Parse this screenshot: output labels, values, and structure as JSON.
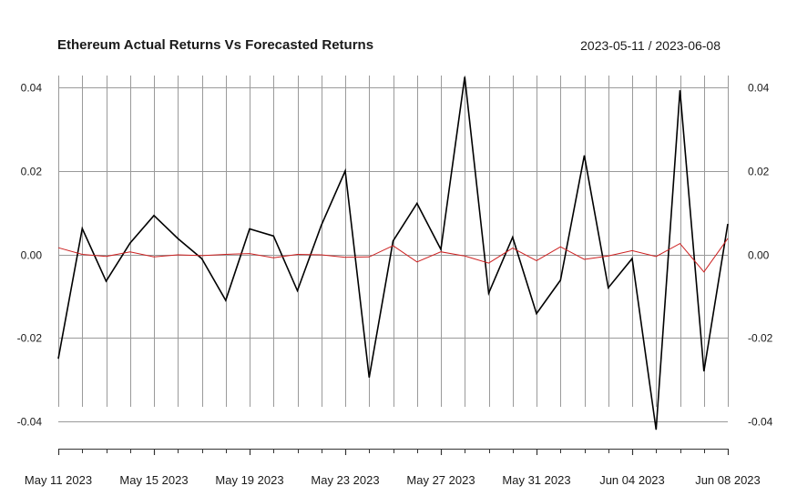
{
  "chart_data": {
    "type": "line",
    "title": "Ethereum Actual Returns Vs Forecasted Returns",
    "date_range": "2023-05-11 / 2023-06-08",
    "xlabel": "",
    "ylabel": "",
    "ylim": [
      -0.046,
      0.043
    ],
    "y_ticks": [
      -0.04,
      -0.02,
      0.0,
      0.02,
      0.04
    ],
    "y_tick_labels": [
      "-0.04",
      "-0.02",
      "0.00",
      "0.02",
      "0.04"
    ],
    "x_tick_labels": [
      "May 11 2023",
      "May 15 2023",
      "May 19 2023",
      "May 23 2023",
      "May 27 2023",
      "May 31 2023",
      "Jun 04 2023",
      "Jun 08 2023"
    ],
    "x_tick_dates": [
      "2023-05-11",
      "2023-05-15",
      "2023-05-19",
      "2023-05-23",
      "2023-05-27",
      "2023-05-31",
      "2023-06-04",
      "2023-06-08"
    ],
    "grid": true,
    "legend": "none",
    "x": [
      "2023-05-11",
      "2023-05-12",
      "2023-05-13",
      "2023-05-14",
      "2023-05-15",
      "2023-05-16",
      "2023-05-17",
      "2023-05-18",
      "2023-05-19",
      "2023-05-20",
      "2023-05-21",
      "2023-05-22",
      "2023-05-23",
      "2023-05-24",
      "2023-05-25",
      "2023-05-26",
      "2023-05-27",
      "2023-05-28",
      "2023-05-29",
      "2023-05-30",
      "2023-05-31",
      "2023-06-01",
      "2023-06-02",
      "2023-06-03",
      "2023-06-04",
      "2023-06-05",
      "2023-06-06",
      "2023-06-07",
      "2023-06-08"
    ],
    "series": [
      {
        "color": "#000000",
        "values": [
          -0.025,
          0.0062,
          -0.0064,
          0.0027,
          0.0093,
          0.0038,
          -0.001,
          -0.011,
          0.0061,
          0.0044,
          -0.0087,
          0.007,
          0.02,
          -0.0295,
          0.0032,
          0.0122,
          0.0012,
          0.0425,
          -0.0093,
          0.0041,
          -0.0142,
          -0.0062,
          0.0237,
          -0.008,
          -0.001,
          -0.042,
          0.0393,
          -0.028,
          0.0073
        ]
      },
      {
        "color": "#cc1f1f",
        "values": [
          0.0016,
          0.0,
          -0.0005,
          0.0006,
          -0.0006,
          -0.0001,
          -0.0003,
          0.0,
          0.0002,
          -0.0008,
          0.0,
          -0.0001,
          -0.0007,
          -0.0006,
          0.0021,
          -0.0018,
          0.0006,
          -0.0004,
          -0.0021,
          0.0015,
          -0.0015,
          0.0018,
          -0.0012,
          -0.0004,
          0.0009,
          -0.0005,
          0.0026,
          -0.0042,
          0.0038
        ]
      }
    ]
  }
}
